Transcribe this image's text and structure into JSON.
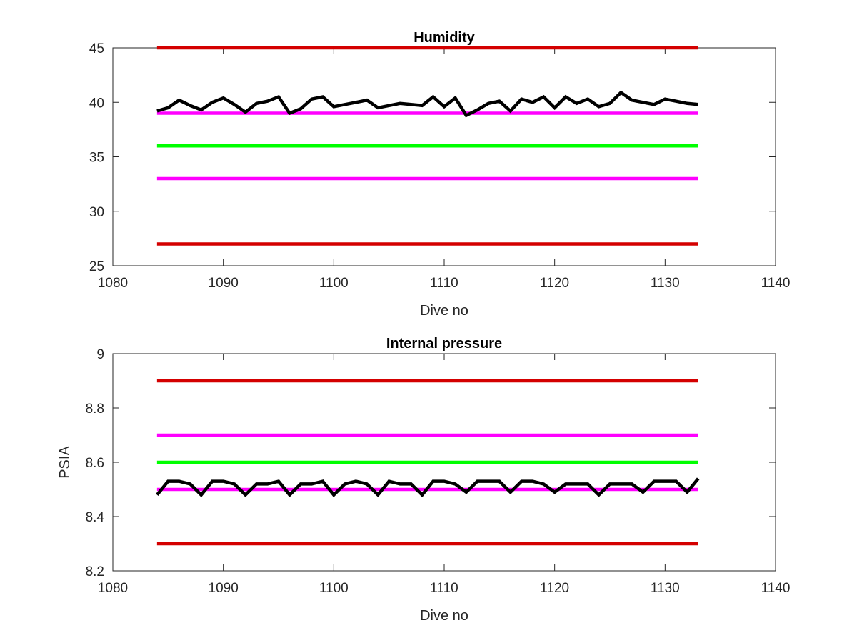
{
  "figure": {
    "background": "#ffffff"
  },
  "chart_data": [
    {
      "type": "line",
      "title": "Humidity",
      "xlabel": "Dive no",
      "ylabel": "",
      "xlim": [
        1080,
        1140
      ],
      "ylim": [
        25,
        45
      ],
      "xticks": [
        1080,
        1090,
        1100,
        1110,
        1120,
        1130,
        1140
      ],
      "yticks": [
        25,
        30,
        35,
        40,
        45
      ],
      "grid": false,
      "legend": "none",
      "threshold_lines": [
        {
          "role": "upper-red-limit",
          "y": 45,
          "x": [
            1084,
            1133
          ],
          "color": "#d40000"
        },
        {
          "role": "upper-magenta-limit",
          "y": 39,
          "x": [
            1084,
            1133
          ],
          "color": "#ff00ff"
        },
        {
          "role": "green-target",
          "y": 36,
          "x": [
            1084,
            1133
          ],
          "color": "#00ff00"
        },
        {
          "role": "lower-magenta-limit",
          "y": 33,
          "x": [
            1084,
            1133
          ],
          "color": "#ff00ff"
        },
        {
          "role": "lower-red-limit",
          "y": 27,
          "x": [
            1084,
            1133
          ],
          "color": "#d40000"
        }
      ],
      "series": [
        {
          "color": "#000000",
          "x": [
            1084,
            1085,
            1086,
            1087,
            1088,
            1089,
            1090,
            1091,
            1092,
            1093,
            1094,
            1095,
            1096,
            1097,
            1098,
            1099,
            1100,
            1101,
            1102,
            1103,
            1104,
            1105,
            1106,
            1107,
            1108,
            1109,
            1110,
            1111,
            1112,
            1113,
            1114,
            1115,
            1116,
            1117,
            1118,
            1119,
            1120,
            1121,
            1122,
            1123,
            1124,
            1125,
            1126,
            1127,
            1128,
            1129,
            1130,
            1131,
            1132,
            1133
          ],
          "values": [
            39.2,
            39.5,
            40.2,
            39.7,
            39.3,
            40.0,
            40.4,
            39.8,
            39.1,
            39.9,
            40.1,
            40.5,
            39.0,
            39.4,
            40.3,
            40.5,
            39.6,
            39.8,
            40.0,
            40.2,
            39.5,
            39.7,
            39.9,
            39.8,
            39.7,
            40.5,
            39.6,
            40.4,
            38.8,
            39.3,
            39.9,
            40.1,
            39.2,
            40.3,
            40.0,
            40.5,
            39.5,
            40.5,
            39.9,
            40.3,
            39.6,
            39.9,
            40.9,
            40.2,
            40.0,
            39.8,
            40.3,
            40.1,
            39.9,
            39.8
          ]
        }
      ]
    },
    {
      "type": "line",
      "title": "Internal pressure",
      "xlabel": "Dive no",
      "ylabel": "PSIA",
      "xlim": [
        1080,
        1140
      ],
      "ylim": [
        8.2,
        9
      ],
      "xticks": [
        1080,
        1090,
        1100,
        1110,
        1120,
        1130,
        1140
      ],
      "yticks": [
        8.2,
        8.4,
        8.6,
        8.8,
        9
      ],
      "grid": false,
      "legend": "none",
      "threshold_lines": [
        {
          "role": "upper-red-limit",
          "y": 8.9,
          "x": [
            1084,
            1133
          ],
          "color": "#d40000"
        },
        {
          "role": "upper-magenta-limit",
          "y": 8.7,
          "x": [
            1084,
            1133
          ],
          "color": "#ff00ff"
        },
        {
          "role": "green-target",
          "y": 8.6,
          "x": [
            1084,
            1133
          ],
          "color": "#00ff00"
        },
        {
          "role": "lower-magenta-limit",
          "y": 8.5,
          "x": [
            1084,
            1133
          ],
          "color": "#ff00ff"
        },
        {
          "role": "lower-red-limit",
          "y": 8.3,
          "x": [
            1084,
            1133
          ],
          "color": "#d40000"
        }
      ],
      "series": [
        {
          "color": "#000000",
          "x": [
            1084,
            1085,
            1086,
            1087,
            1088,
            1089,
            1090,
            1091,
            1092,
            1093,
            1094,
            1095,
            1096,
            1097,
            1098,
            1099,
            1100,
            1101,
            1102,
            1103,
            1104,
            1105,
            1106,
            1107,
            1108,
            1109,
            1110,
            1111,
            1112,
            1113,
            1114,
            1115,
            1116,
            1117,
            1118,
            1119,
            1120,
            1121,
            1122,
            1123,
            1124,
            1125,
            1126,
            1127,
            1128,
            1129,
            1130,
            1131,
            1132,
            1133
          ],
          "values": [
            8.48,
            8.53,
            8.53,
            8.52,
            8.48,
            8.53,
            8.53,
            8.52,
            8.48,
            8.52,
            8.52,
            8.53,
            8.48,
            8.52,
            8.52,
            8.53,
            8.48,
            8.52,
            8.53,
            8.52,
            8.48,
            8.53,
            8.52,
            8.52,
            8.48,
            8.53,
            8.53,
            8.52,
            8.49,
            8.53,
            8.53,
            8.53,
            8.49,
            8.53,
            8.53,
            8.52,
            8.49,
            8.52,
            8.52,
            8.52,
            8.48,
            8.52,
            8.52,
            8.52,
            8.49,
            8.53,
            8.53,
            8.53,
            8.49,
            8.54
          ]
        }
      ]
    }
  ]
}
